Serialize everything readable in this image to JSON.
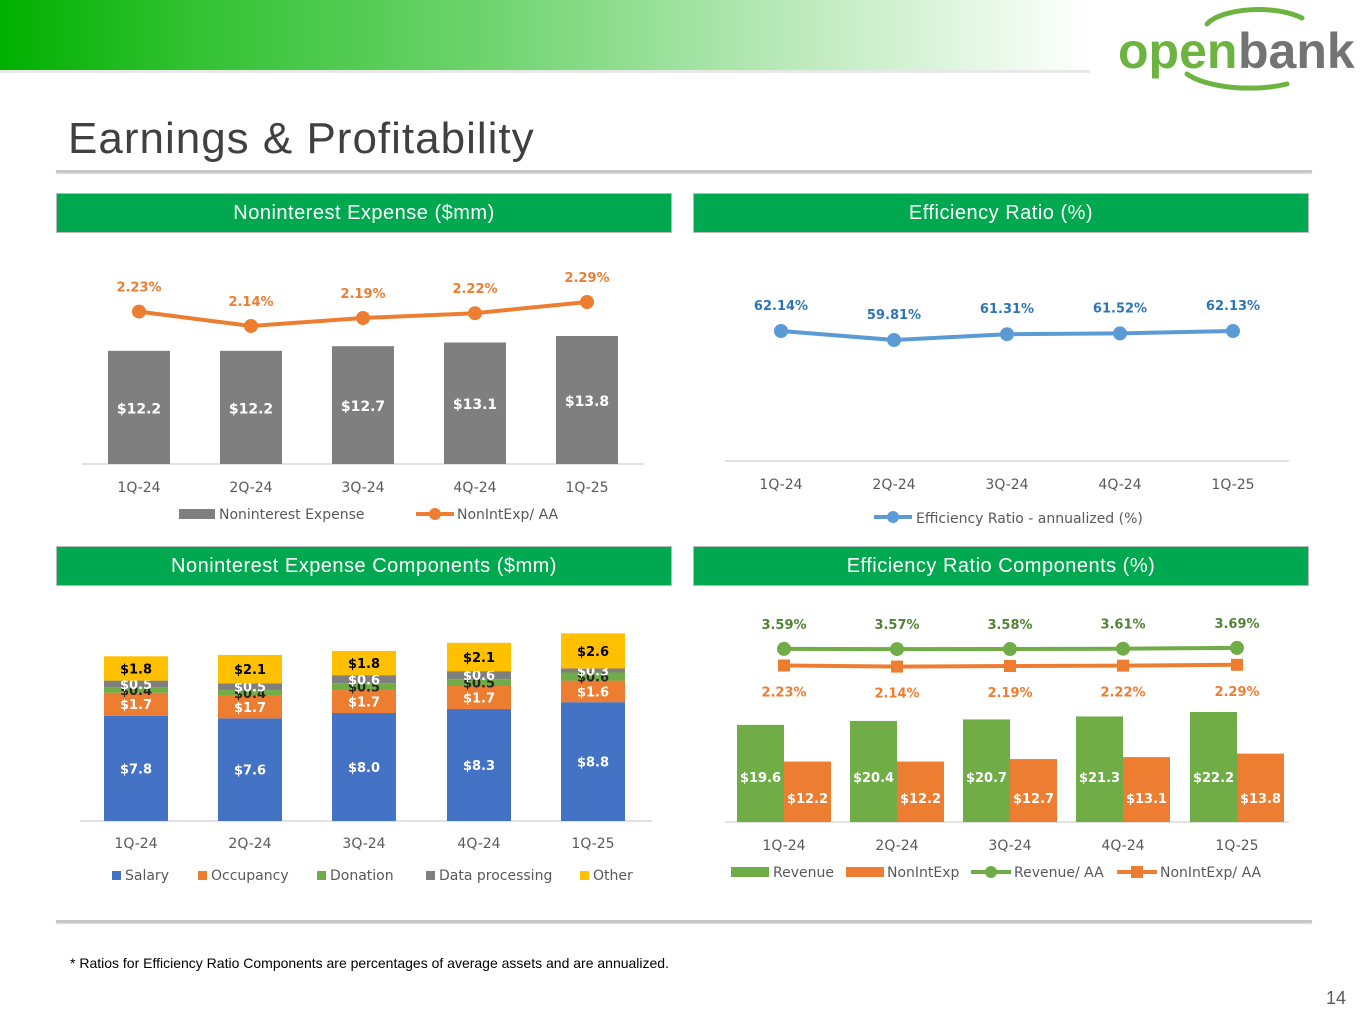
{
  "header": {
    "brand_word1": "open",
    "brand_word2": "bank",
    "brand_green": "#6db33f",
    "brand_gray": "#737373"
  },
  "page_title": "Earnings & Profitability",
  "panels": {
    "p1_title": "Noninterest Expense ($mm)",
    "p2_title": "Efficiency Ratio (%)",
    "p3_title": "Noninterest Expense Components ($mm)",
    "p4_title": "Efficiency Ratio Components (%)"
  },
  "footnote": "* Ratios for Efficiency Ratio Components are percentages of average assets and are annualized.",
  "page_number": "14",
  "colors": {
    "header_green": "#00a94f",
    "gray_bar": "#7f7f7f",
    "orange": "#ed7d31",
    "blue_line": "#5b9bd5",
    "blue_label": "#2e75b6",
    "salary_blue": "#4472c4",
    "donation_green": "#70ad47",
    "other_yellow": "#ffc000",
    "green_label": "#548235"
  },
  "chart_data": [
    {
      "id": "noninterest-expense",
      "type": "bar",
      "categories": [
        "1Q-24",
        "2Q-24",
        "3Q-24",
        "4Q-24",
        "1Q-25"
      ],
      "series": [
        {
          "name": "Noninterest Expense",
          "type": "bar",
          "values": [
            12.2,
            12.2,
            12.7,
            13.1,
            13.8
          ],
          "labels": [
            "$12.2",
            "$12.2",
            "$12.7",
            "$13.1",
            "$13.8"
          ]
        },
        {
          "name": "NonIntExp/ AA",
          "type": "line",
          "values": [
            2.23,
            2.14,
            2.19,
            2.22,
            2.29
          ],
          "labels": [
            "2.23%",
            "2.14%",
            "2.19%",
            "2.22%",
            "2.29%"
          ]
        }
      ],
      "legend": "bottom",
      "grid": false
    },
    {
      "id": "efficiency-ratio",
      "type": "line",
      "categories": [
        "1Q-24",
        "2Q-24",
        "3Q-24",
        "4Q-24",
        "1Q-25"
      ],
      "series": [
        {
          "name": "Efficiency Ratio - annualized (%)",
          "values": [
            62.14,
            59.81,
            61.31,
            61.52,
            62.13
          ],
          "labels": [
            "62.14%",
            "59.81%",
            "61.31%",
            "61.52%",
            "62.13%"
          ]
        }
      ],
      "legend": "bottom",
      "grid": false
    },
    {
      "id": "noninterest-expense-components",
      "type": "bar",
      "stacked": true,
      "categories": [
        "1Q-24",
        "2Q-24",
        "3Q-24",
        "4Q-24",
        "1Q-25"
      ],
      "series": [
        {
          "name": "Salary",
          "values": [
            7.8,
            7.6,
            8.0,
            8.3,
            8.8
          ],
          "labels": [
            "$7.8",
            "$7.6",
            "$8.0",
            "$8.3",
            "$8.8"
          ]
        },
        {
          "name": "Occupancy",
          "values": [
            1.7,
            1.7,
            1.7,
            1.7,
            1.6
          ],
          "labels": [
            "$1.7",
            "$1.7",
            "$1.7",
            "$1.7",
            "$1.6"
          ]
        },
        {
          "name": "Donation",
          "values": [
            0.4,
            0.4,
            0.5,
            0.5,
            0.6
          ],
          "labels": [
            "$0.4",
            "$0.4",
            "$0.5",
            "$0.5",
            "$0.6"
          ]
        },
        {
          "name": "Data processing",
          "values": [
            0.5,
            0.5,
            0.6,
            0.6,
            0.3
          ],
          "labels": [
            "$0.5",
            "$0.5",
            "$0.6",
            "$0.6",
            "$0.3"
          ]
        },
        {
          "name": "Other",
          "values": [
            1.8,
            2.1,
            1.8,
            2.1,
            2.6
          ],
          "labels": [
            "$1.8",
            "$2.1",
            "$1.8",
            "$2.1",
            "$2.6"
          ]
        }
      ],
      "legend": "bottom",
      "grid": false
    },
    {
      "id": "efficiency-ratio-components",
      "type": "bar",
      "categories": [
        "1Q-24",
        "2Q-24",
        "3Q-24",
        "4Q-24",
        "1Q-25"
      ],
      "series": [
        {
          "name": "Revenue",
          "type": "bar",
          "values": [
            19.6,
            20.4,
            20.7,
            21.3,
            22.2
          ],
          "labels": [
            "$19.6",
            "$20.4",
            "$20.7",
            "$21.3",
            "$22.2"
          ]
        },
        {
          "name": "NonIntExp",
          "type": "bar",
          "values": [
            12.2,
            12.2,
            12.7,
            13.1,
            13.8
          ],
          "labels": [
            "$12.2",
            "$12.2",
            "$12.7",
            "$13.1",
            "$13.8"
          ]
        },
        {
          "name": "Revenue/ AA",
          "type": "line",
          "values": [
            3.59,
            3.57,
            3.58,
            3.61,
            3.69
          ],
          "labels": [
            "3.59%",
            "3.57%",
            "3.58%",
            "3.61%",
            "3.69%"
          ]
        },
        {
          "name": "NonIntExp/ AA",
          "type": "line",
          "values": [
            2.23,
            2.14,
            2.19,
            2.22,
            2.29
          ],
          "labels": [
            "2.23%",
            "2.14%",
            "2.19%",
            "2.22%",
            "2.29%"
          ]
        }
      ],
      "legend": "bottom",
      "grid": false
    }
  ]
}
